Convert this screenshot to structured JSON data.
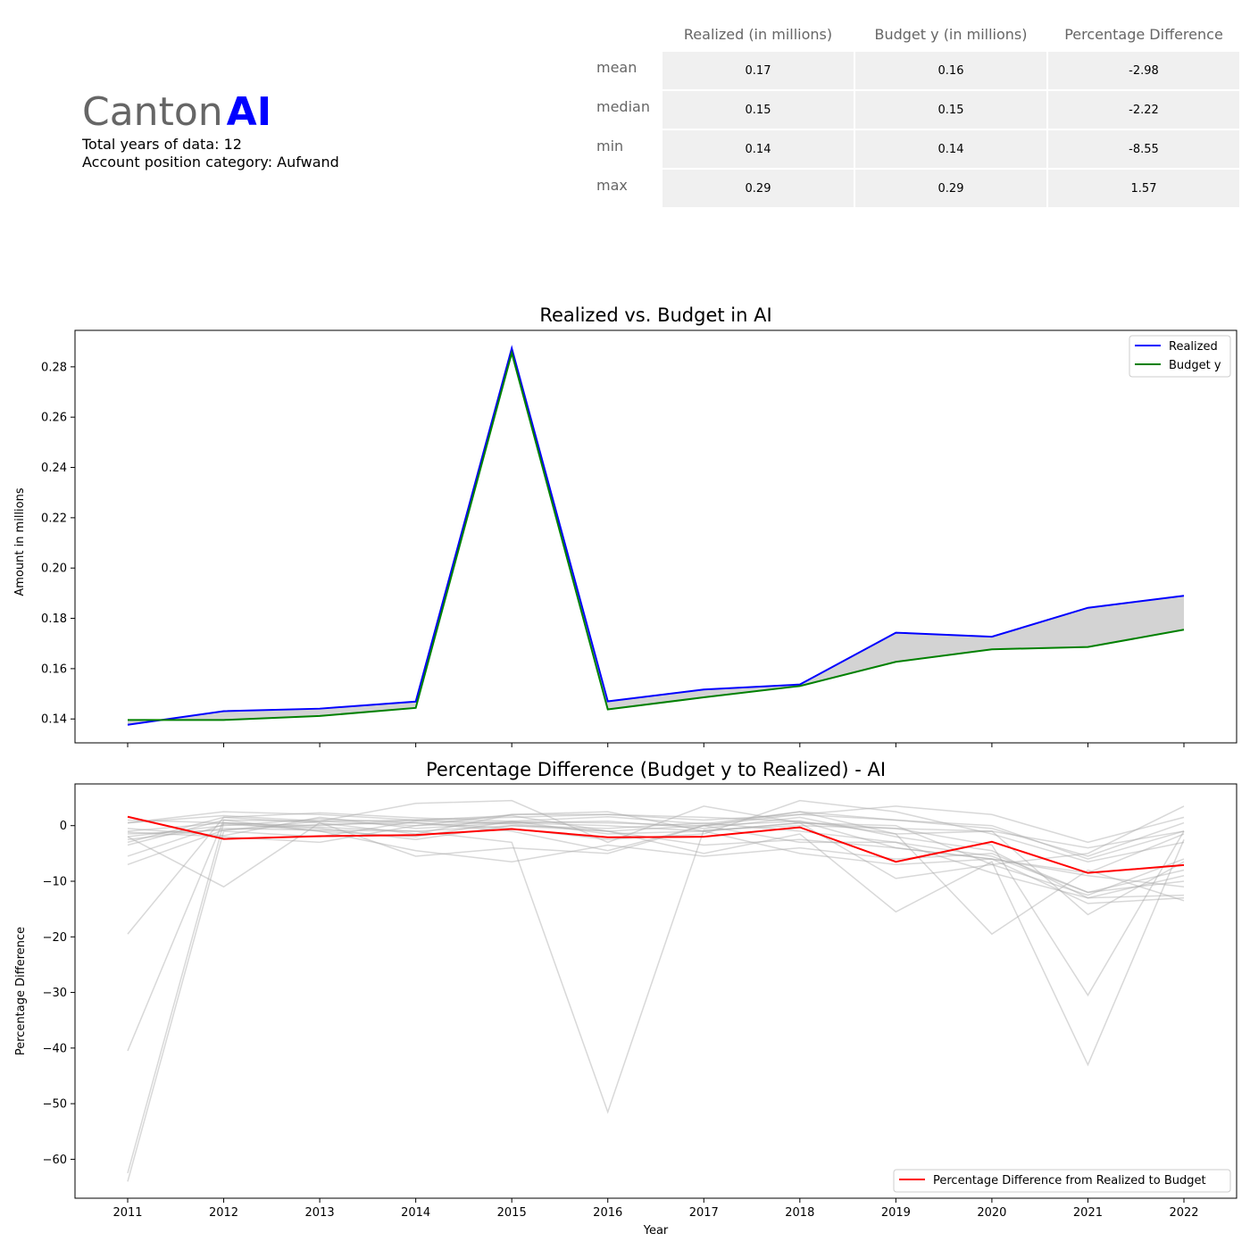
{
  "header": {
    "canton_name": "Canton",
    "canton_code": "AI",
    "years_line": "Total years of data: 12",
    "category_line": "Account position category: Aufwand"
  },
  "stats_table": {
    "columns": [
      "Realized (in millions)",
      "Budget y (in millions)",
      "Percentage Difference"
    ],
    "rows": [
      {
        "label": "mean",
        "values": [
          "0.17",
          "0.16",
          "-2.98"
        ]
      },
      {
        "label": "median",
        "values": [
          "0.15",
          "0.15",
          "-2.22"
        ]
      },
      {
        "label": "min",
        "values": [
          "0.14",
          "0.14",
          "-8.55"
        ]
      },
      {
        "label": "max",
        "values": [
          "0.29",
          "0.29",
          "1.57"
        ]
      }
    ]
  },
  "chart_data": [
    {
      "type": "line",
      "title": "Realized vs. Budget in AI",
      "xlabel": "",
      "ylabel": "Amount in millions",
      "x": [
        2011,
        2012,
        2013,
        2014,
        2015,
        2016,
        2017,
        2018,
        2019,
        2020,
        2021,
        2022
      ],
      "ylim": [
        0.1305,
        0.2945
      ],
      "yticks": [
        0.14,
        0.16,
        0.18,
        0.2,
        0.22,
        0.24,
        0.26,
        0.28
      ],
      "ytick_labels": [
        "0.14",
        "0.16",
        "0.18",
        "0.20",
        "0.22",
        "0.24",
        "0.26",
        "0.28"
      ],
      "fill_between": true,
      "legend": "top-right",
      "series": [
        {
          "name": "Realized",
          "color": "#0000ff",
          "values": [
            0.1377,
            0.1431,
            0.1441,
            0.1469,
            0.2874,
            0.147,
            0.1517,
            0.1537,
            0.1743,
            0.1727,
            0.1842,
            0.189
          ]
        },
        {
          "name": "Budget y",
          "color": "#008000",
          "values": [
            0.1396,
            0.1396,
            0.1412,
            0.1444,
            0.2855,
            0.1438,
            0.1486,
            0.1531,
            0.1627,
            0.1677,
            0.1686,
            0.1755
          ]
        }
      ],
      "fill_color": "#d3d3d3"
    },
    {
      "type": "line",
      "title": "Percentage Difference (Budget y to Realized) - AI",
      "xlabel": "Year",
      "ylabel": "Percentage Difference",
      "x": [
        2011,
        2012,
        2013,
        2014,
        2015,
        2016,
        2017,
        2018,
        2019,
        2020,
        2021,
        2022
      ],
      "xtick_labels": [
        "2011",
        "2012",
        "2013",
        "2014",
        "2015",
        "2016",
        "2017",
        "2018",
        "2019",
        "2020",
        "2021",
        "2022"
      ],
      "ylim": [
        -67.0,
        7.5
      ],
      "yticks": [
        0,
        -10,
        -20,
        -30,
        -40,
        -50,
        -60
      ],
      "ytick_labels": [
        "0",
        "−10",
        "−20",
        "−30",
        "−40",
        "−50",
        "−60"
      ],
      "legend": "bottom-right",
      "highlight": {
        "name": "Percentage Difference from Realized to Budget",
        "color": "#ff0000",
        "values": [
          1.6,
          -2.4,
          -1.9,
          -1.7,
          -0.6,
          -2.1,
          -2.0,
          -0.3,
          -6.5,
          -2.9,
          -8.5,
          -7.1
        ]
      },
      "background_color": "#a9a9a9",
      "background_series": [
        [
          -1.0,
          0.5,
          0.0,
          1.0,
          0.5,
          0.0,
          -1.0,
          0.5,
          -0.5,
          -1.0,
          -4.0,
          -1.0
        ],
        [
          0.5,
          2.5,
          2.0,
          1.0,
          1.5,
          2.0,
          1.0,
          2.0,
          3.5,
          2.0,
          -3.0,
          1.5
        ],
        [
          -3.0,
          1.5,
          2.3,
          1.4,
          0.8,
          1.6,
          0.3,
          2.5,
          1.0,
          0.0,
          -6.0,
          -1.0
        ],
        [
          -5.5,
          0.2,
          -0.5,
          -2.5,
          0.0,
          -1.0,
          -3.5,
          -2.5,
          -4.0,
          -6.0,
          -9.0,
          -11.0
        ],
        [
          -7.0,
          -0.8,
          0.8,
          4.0,
          4.5,
          -3.0,
          3.5,
          0.5,
          0.0,
          -7.0,
          -12.5,
          -6.0
        ],
        [
          -19.5,
          1.5,
          0.5,
          -1.5,
          2.0,
          2.0,
          1.5,
          0.8,
          -1.5,
          -1.0,
          -16.0,
          -6.5
        ],
        [
          -40.5,
          1.0,
          -1.0,
          -4.5,
          -6.5,
          -3.5,
          -5.5,
          -4.0,
          -6.0,
          -5.0,
          -12.0,
          -10.0
        ],
        [
          -62.5,
          0.5,
          -0.3,
          -1.0,
          -3.0,
          -51.5,
          -0.8,
          0.0,
          -0.5,
          -3.5,
          -30.5,
          -1.0
        ],
        [
          -64.0,
          -1.0,
          -2.0,
          0.8,
          0.3,
          -1.0,
          -5.0,
          -1.5,
          -15.5,
          -6.5,
          -43.0,
          -2.5
        ],
        [
          -2.0,
          -11.0,
          0.5,
          -5.5,
          -4.0,
          -5.0,
          0.0,
          2.5,
          -1.5,
          -19.5,
          -8.0,
          -13.5
        ],
        [
          -1.5,
          -0.8,
          0.2,
          0.5,
          -0.5,
          -2.5,
          -1.5,
          4.5,
          2.5,
          -1.5,
          -6.5,
          -3.0
        ],
        [
          -0.5,
          -1.8,
          1.5,
          -0.5,
          0.5,
          0.8,
          -0.5,
          1.5,
          -2.0,
          -4.5,
          -13.0,
          -12.5
        ],
        [
          -2.5,
          -0.5,
          -0.8,
          -1.0,
          0.0,
          -0.5,
          0.5,
          -1.0,
          -3.0,
          -5.5,
          -12.0,
          -8.0
        ],
        [
          -3.5,
          1.0,
          0.8,
          0.0,
          0.7,
          0.5,
          0.0,
          0.8,
          -4.0,
          -6.0,
          -14.0,
          -13.0
        ],
        [
          0.5,
          1.8,
          0.8,
          1.0,
          1.8,
          -1.0,
          0.0,
          2.0,
          1.0,
          -0.5,
          -5.5,
          0.5
        ],
        [
          -1.2,
          -2.0,
          -3.0,
          0.0,
          2.0,
          2.5,
          -1.0,
          0.5,
          -9.5,
          -7.0,
          -5.0,
          3.5
        ],
        [
          -2.0,
          0.0,
          1.2,
          0.5,
          -1.0,
          -4.5,
          0.0,
          -3.0,
          -3.0,
          -8.5,
          -13.0,
          -9.0
        ],
        [
          1.0,
          0.5,
          -1.0,
          -2.0,
          0.8,
          -1.5,
          -1.0,
          -5.0,
          -7.0,
          -6.0,
          -8.5,
          -1.5
        ]
      ]
    }
  ]
}
